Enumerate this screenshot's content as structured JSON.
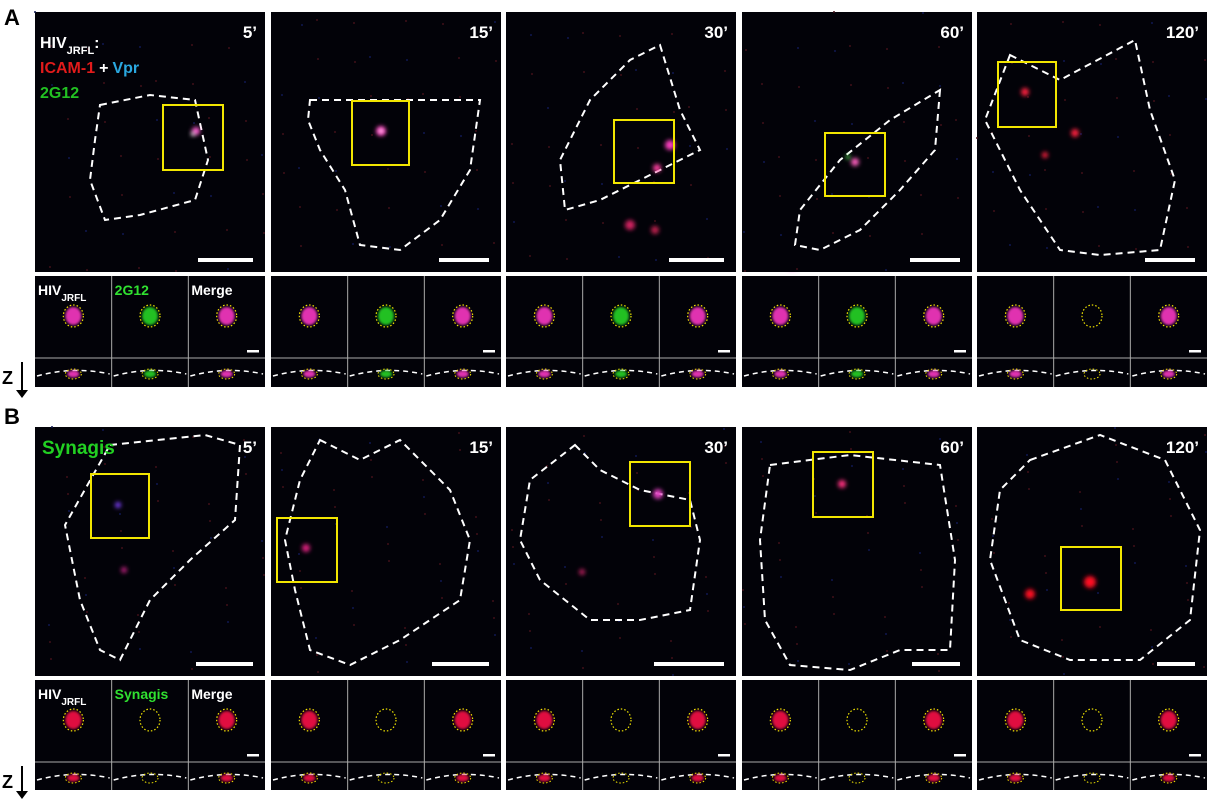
{
  "panels": [
    {
      "label": "A",
      "legend": {
        "virus": "HIV",
        "virus_sub": "JRFL",
        "colon": ":",
        "stain1": "ICAM-1",
        "plus": "+",
        "stain2": "Vpr",
        "antibody": "2G12"
      },
      "times": [
        "5’",
        "15’",
        "30’",
        "60’",
        "120’"
      ],
      "inset_header": {
        "virus": "HIV",
        "virus_sub": "JRFL",
        "antibody": "2G12",
        "merge": "Merge"
      },
      "z_label": "Z"
    },
    {
      "label": "B",
      "legend": {
        "antibody": "Synagis"
      },
      "times": [
        "5’",
        "15’",
        "30’",
        "60’",
        "120’"
      ],
      "inset_header": {
        "virus": "HIV",
        "virus_sub": "JRFL",
        "antibody": "Synagis",
        "merge": "Merge"
      },
      "z_label": "Z"
    }
  ]
}
